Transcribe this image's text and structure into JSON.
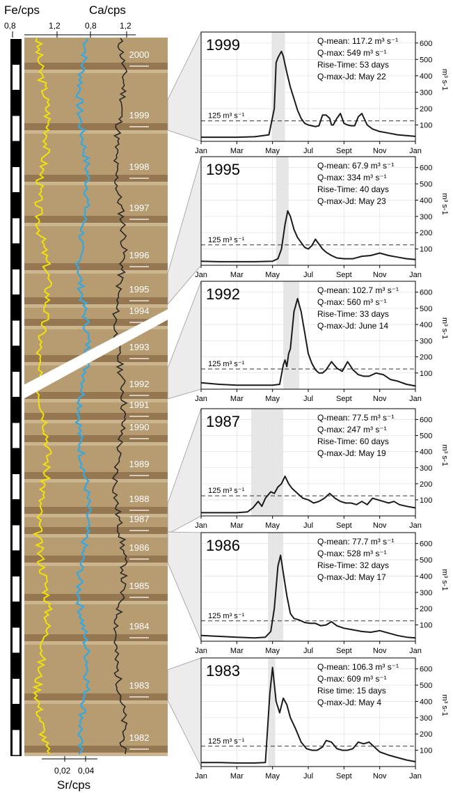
{
  "core": {
    "fe_label": "Fe/cps",
    "ca_label": "Ca/cps",
    "sr_label": "Sr/cps",
    "fe_ticks": [
      "0,8",
      "1,2"
    ],
    "ca_ticks": [
      "0,8",
      "1,2"
    ],
    "sr_ticks": [
      "0,02",
      "0,04"
    ],
    "year_labels": [
      "2000",
      "1999",
      "1998",
      "1997",
      "1996",
      "1995",
      "1994",
      "1993",
      "1992",
      "1991",
      "1990",
      "1989",
      "1988",
      "1987",
      "1986",
      "1985",
      "1984",
      "1983",
      "1982"
    ],
    "colors": {
      "fe": "#f2e205",
      "ca": "#3ba8dc",
      "sr": "#2a2a2a",
      "sediment": "#b79c72",
      "scale_bar": "#000000"
    }
  },
  "chart_data": [
    {
      "type": "line",
      "title": "1999",
      "stats": [
        "Q-mean: 117.2 m³ s⁻¹",
        "Q-max: 549 m³ s⁻¹",
        "Rise-Time: 53 days",
        "Q-max-Jd: May 22"
      ],
      "threshold_label": "125 m³ s⁻¹",
      "threshold": 125,
      "ylim": [
        0,
        650
      ],
      "yticks": [
        100,
        200,
        300,
        400,
        500,
        600
      ],
      "xticks": [
        "Jan",
        "Mar",
        "May",
        "Jul",
        "Sept",
        "Nov",
        "Jan"
      ],
      "ylabel": "m³ s-1",
      "shaded_months": [
        3.95,
        4.7
      ],
      "x": [
        0,
        1,
        2,
        3,
        3.8,
        4.1,
        4.2,
        4.3,
        4.4,
        4.5,
        4.6,
        4.7,
        4.8,
        5.0,
        5.2,
        5.4,
        5.6,
        5.8,
        6.0,
        6.2,
        6.4,
        6.6,
        6.8,
        7.0,
        7.2,
        7.3,
        7.4,
        7.6,
        7.8,
        8.0,
        8.2,
        8.4,
        8.6,
        8.8,
        9.0,
        9.3,
        9.6,
        10.0,
        10.5,
        11.0,
        11.5,
        12.0
      ],
      "y": [
        25,
        25,
        25,
        28,
        40,
        200,
        480,
        510,
        530,
        549,
        520,
        470,
        420,
        330,
        260,
        190,
        140,
        110,
        100,
        95,
        90,
        95,
        160,
        160,
        140,
        100,
        100,
        140,
        170,
        110,
        100,
        95,
        95,
        150,
        170,
        100,
        75,
        60,
        50,
        40,
        35,
        30
      ]
    },
    {
      "type": "line",
      "title": "1995",
      "stats": [
        "Q-mean: 67.9  m³ s⁻¹",
        "Q-max: 334 m³ s⁻¹",
        "Rise-Time: 40 days",
        "Q-max-Jd: May 23"
      ],
      "threshold_label": "125 m³ s⁻¹",
      "threshold": 125,
      "ylim": [
        0,
        650
      ],
      "yticks": [
        100,
        200,
        300,
        400,
        500,
        600
      ],
      "xticks": [
        "Jan",
        "Mar",
        "May",
        "Jul",
        "Sept",
        "Nov",
        "Jan"
      ],
      "ylabel": "m³ s-1",
      "shaded_months": [
        4.2,
        4.9
      ],
      "x": [
        0,
        1,
        2,
        3,
        4.0,
        4.3,
        4.5,
        4.7,
        4.85,
        5.0,
        5.2,
        5.4,
        5.6,
        5.8,
        6.0,
        6.2,
        6.4,
        6.6,
        6.8,
        7.0,
        7.3,
        7.6,
        8.0,
        8.5,
        9.0,
        9.5,
        10.0,
        10.5,
        11.0,
        11.5,
        12.0
      ],
      "y": [
        25,
        22,
        22,
        22,
        25,
        40,
        100,
        250,
        334,
        300,
        220,
        170,
        140,
        110,
        100,
        120,
        160,
        130,
        100,
        80,
        60,
        45,
        40,
        40,
        55,
        60,
        75,
        60,
        50,
        40,
        35
      ]
    },
    {
      "type": "line",
      "title": "1992",
      "stats": [
        "Q-mean: 102.7 m³ s⁻¹",
        "Q-max: 560 m³ s⁻¹",
        "Rise-Time: 33 days",
        "Q-max-Jd: June 14"
      ],
      "threshold_label": "125 m³ s⁻¹",
      "threshold": 125,
      "ylim": [
        0,
        650
      ],
      "yticks": [
        100,
        200,
        300,
        400,
        500,
        600
      ],
      "xticks": [
        "Jan",
        "Mar",
        "May",
        "Jul",
        "Sept",
        "Nov",
        "Jan"
      ],
      "ylabel": "m³ s-1",
      "shaded_months": [
        4.6,
        5.5
      ],
      "x": [
        0,
        1,
        2,
        3,
        4.0,
        4.4,
        4.6,
        4.7,
        4.8,
        4.9,
        5.0,
        5.2,
        5.4,
        5.6,
        5.8,
        6.0,
        6.2,
        6.4,
        6.6,
        6.8,
        7.0,
        7.3,
        7.6,
        7.9,
        8.2,
        8.5,
        8.8,
        9.1,
        9.4,
        9.8,
        10.2,
        10.6,
        11.0,
        11.5,
        12.0
      ],
      "y": [
        40,
        30,
        25,
        25,
        25,
        30,
        150,
        180,
        140,
        220,
        250,
        480,
        560,
        480,
        350,
        220,
        160,
        120,
        100,
        100,
        120,
        170,
        130,
        110,
        170,
        120,
        90,
        80,
        80,
        100,
        90,
        60,
        50,
        30,
        20
      ]
    },
    {
      "type": "line",
      "title": "1987",
      "stats": [
        "Q-mean: 77.5 m³ s⁻¹",
        "Q-max: 247 m³ s⁻¹",
        "Rise-Time: 60 days",
        "Q-max-Jd: May 19"
      ],
      "threshold_label": "125 m³ s⁻¹",
      "threshold": 125,
      "ylim": [
        0,
        650
      ],
      "yticks": [
        100,
        200,
        300,
        400,
        500,
        600
      ],
      "xticks": [
        "Jan",
        "Mar",
        "May",
        "Jul",
        "Sept",
        "Nov",
        "Jan"
      ],
      "ylabel": "m³ s-1",
      "shaded_months": [
        2.8,
        4.6
      ],
      "x": [
        0,
        1,
        2,
        2.6,
        2.9,
        3.2,
        3.4,
        3.6,
        3.9,
        4.1,
        4.3,
        4.5,
        4.7,
        4.9,
        5.1,
        5.4,
        5.7,
        6.0,
        6.3,
        6.6,
        6.9,
        7.2,
        7.5,
        7.8,
        8.1,
        8.4,
        8.7,
        9.0,
        9.3,
        9.6,
        9.9,
        10.2,
        10.5,
        10.8,
        11.1,
        11.5,
        12.0
      ],
      "y": [
        20,
        20,
        20,
        25,
        50,
        90,
        60,
        110,
        150,
        140,
        180,
        200,
        247,
        200,
        170,
        140,
        110,
        100,
        80,
        90,
        110,
        140,
        110,
        90,
        80,
        80,
        70,
        90,
        70,
        110,
        100,
        90,
        80,
        90,
        70,
        60,
        50
      ]
    },
    {
      "type": "line",
      "title": "1986",
      "stats": [
        "Q-mean: 77.7 m³ s⁻¹",
        "Q-max: 528 m³ s⁻¹",
        "Rise-Time: 32 days",
        "Q-max-Jd: May 17"
      ],
      "threshold_label": "125 m³ s⁻¹",
      "threshold": 125,
      "ylim": [
        0,
        650
      ],
      "yticks": [
        100,
        200,
        300,
        400,
        500,
        600
      ],
      "xticks": [
        "Jan",
        "Mar",
        "May",
        "Jul",
        "Sept",
        "Nov",
        "Jan"
      ],
      "ylabel": "m³ s-1",
      "shaded_months": [
        3.75,
        4.6
      ],
      "x": [
        0,
        1,
        2,
        3,
        3.6,
        3.9,
        4.1,
        4.3,
        4.45,
        4.6,
        4.8,
        5.0,
        5.2,
        5.5,
        5.8,
        6.1,
        6.4,
        6.7,
        7.0,
        7.3,
        7.6,
        8.0,
        8.5,
        9.0,
        9.5,
        10.0,
        10.5,
        11.0,
        11.5,
        12.0
      ],
      "y": [
        35,
        30,
        25,
        20,
        25,
        60,
        200,
        460,
        528,
        420,
        280,
        170,
        140,
        130,
        115,
        110,
        110,
        95,
        100,
        120,
        95,
        80,
        70,
        60,
        55,
        65,
        50,
        35,
        25,
        20
      ]
    },
    {
      "type": "line",
      "title": "1983",
      "stats": [
        "Q-mean: 106.3 m³ s⁻¹",
        "Q-max: 609 m³ s⁻¹",
        "Rise time: 15 days",
        "Q-max-Jd: May 4"
      ],
      "threshold_label": "125 m³ s⁻¹",
      "threshold": 125,
      "ylim": [
        0,
        650
      ],
      "yticks": [
        100,
        200,
        300,
        400,
        500,
        600
      ],
      "xticks": [
        "Jan",
        "Mar",
        "May",
        "Jul",
        "Sept",
        "Nov",
        "Jan"
      ],
      "ylabel": "m³ s-1",
      "shaded_months": [
        3.75,
        4.15
      ],
      "x": [
        0,
        1,
        2,
        3,
        3.6,
        3.85,
        4.0,
        4.2,
        4.4,
        4.6,
        4.8,
        5.0,
        5.3,
        5.6,
        5.9,
        6.2,
        6.5,
        6.8,
        7.0,
        7.3,
        7.6,
        7.9,
        8.2,
        8.5,
        8.8,
        9.1,
        9.4,
        9.7,
        10.0,
        10.5,
        11.0,
        11.5,
        12.0
      ],
      "y": [
        25,
        25,
        22,
        22,
        25,
        450,
        609,
        400,
        330,
        420,
        380,
        300,
        230,
        150,
        110,
        100,
        100,
        120,
        160,
        150,
        110,
        100,
        100,
        110,
        150,
        140,
        150,
        120,
        90,
        70,
        55,
        40,
        30
      ]
    }
  ]
}
